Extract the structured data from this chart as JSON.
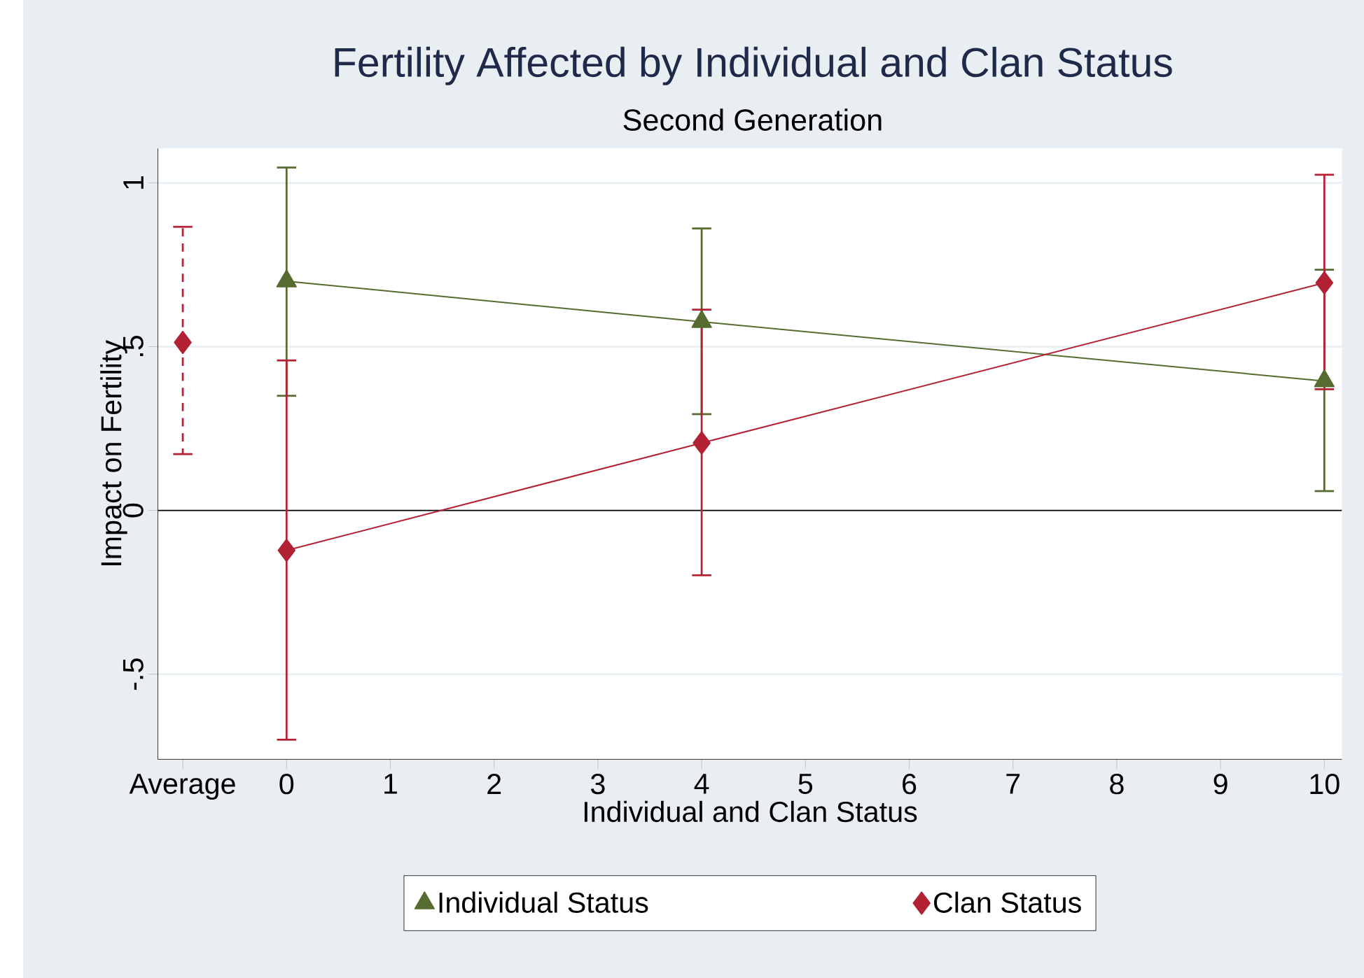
{
  "chart_data": {
    "type": "line",
    "title": "Fertility Affected by Individual and Clan Status",
    "subtitle": "Second Generation",
    "xlabel": "Individual and Clan Status",
    "ylabel": "Impact on Fertility",
    "x": [
      0,
      4,
      10
    ],
    "series": [
      {
        "type": "scatter",
        "color": "#b22234",
        "marker": "diamond",
        "line_style": "dashed",
        "x": [
          -1
        ],
        "values": [
          0.513
        ],
        "errors": [
          [
            0.172,
            0.866
          ]
        ]
      },
      {
        "name": "Individual Status",
        "color": "#556b2f",
        "marker": "triangle",
        "values": [
          0.7,
          0.576,
          0.395
        ],
        "errors": [
          [
            0.35,
            1.047
          ],
          [
            0.294,
            0.861
          ],
          [
            0.059,
            0.735
          ]
        ]
      },
      {
        "name": "Clan Status",
        "color": "#b22234",
        "marker": "diamond",
        "values": [
          -0.122,
          0.206,
          0.695
        ],
        "errors": [
          [
            -0.7,
            0.458
          ],
          [
            -0.198,
            0.613
          ],
          [
            0.37,
            1.025
          ]
        ]
      }
    ],
    "xlim": [
      -1.24,
      10.17
    ],
    "ylim": [
      -0.76,
      1.105
    ],
    "xticks": [
      {
        "value": -1,
        "label": "Average"
      },
      0,
      1,
      2,
      3,
      4,
      5,
      6,
      7,
      8,
      9,
      10
    ],
    "yticks": [
      {
        "value": -0.5,
        "label": "-.5"
      },
      0,
      {
        "value": 0.5,
        "label": ".5"
      },
      1
    ],
    "ref_lines": [
      {
        "axis": "y",
        "value": 0,
        "color": "#000000"
      }
    ],
    "grid": "y",
    "legend": "bottom"
  }
}
